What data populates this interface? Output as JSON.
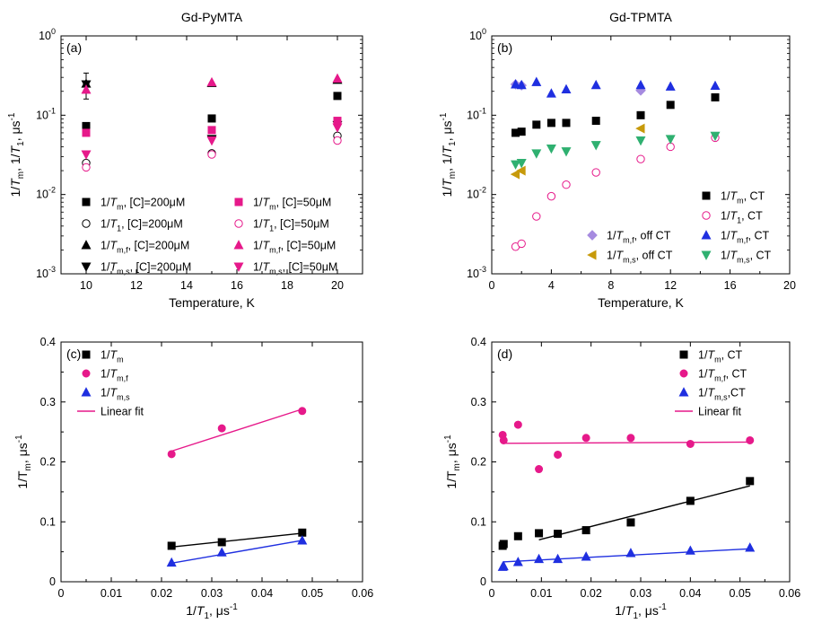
{
  "figure": {
    "axis_scale_note": "panels a,b use log y; panels c,d linear"
  },
  "chart_data": [
    {
      "panel": "a",
      "type": "scatter",
      "tag": "(a)",
      "title": "Gd-PyMTA",
      "xlabel": "Temperature, K",
      "ylabel": "1/Tm, 1/T1, μs⁻¹",
      "xlim": [
        9,
        21
      ],
      "ylim": [
        0.001,
        1
      ],
      "yscale": "log",
      "xticks": [
        10,
        12,
        14,
        16,
        18,
        20
      ],
      "yticks": [
        {
          "v": 0.001,
          "b": "10",
          "e": "-3"
        },
        {
          "v": 0.01,
          "b": "10",
          "e": "-2"
        },
        {
          "v": 0.1,
          "b": "10",
          "e": "-1"
        },
        {
          "v": 1,
          "b": "10",
          "e": "0"
        }
      ],
      "legend_position": "lower",
      "series": [
        {
          "name": "1/Tm, [C]=200μM",
          "marker": "square",
          "color": "#000000",
          "fill": true,
          "x": [
            10,
            15,
            20
          ],
          "y": [
            0.073,
            0.091,
            0.175
          ]
        },
        {
          "name": "1/T1, [C]=200μM",
          "marker": "circle",
          "color": "#000000",
          "fill": false,
          "x": [
            10,
            15,
            20
          ],
          "y": [
            0.025,
            0.033,
            0.055
          ]
        },
        {
          "name": "1/Tm,f, [C]=200μM",
          "marker": "triangle-up",
          "color": "#000000",
          "fill": true,
          "x": [
            10,
            15,
            20
          ],
          "y": [
            0.25,
            0.255,
            0.28
          ],
          "yerr": [
            0.09,
            0,
            0
          ]
        },
        {
          "name": "1/Tm,s, [C]=200μM",
          "marker": "triangle-down",
          "color": "#000000",
          "fill": true,
          "x": [
            10,
            15,
            20
          ],
          "y": [
            0.245,
            0.05,
            0.075
          ]
        },
        {
          "name": "1/Tm, [C]=50μM",
          "marker": "square",
          "color": "#e6198a",
          "fill": true,
          "x": [
            10,
            15,
            20
          ],
          "y": [
            0.06,
            0.065,
            0.085
          ]
        },
        {
          "name": "1/T1, [C]=50μM",
          "marker": "circle",
          "color": "#e6198a",
          "fill": false,
          "x": [
            10,
            15,
            20
          ],
          "y": [
            0.022,
            0.032,
            0.048
          ]
        },
        {
          "name": "1/Tm,f, [C]=50μM",
          "marker": "triangle-up",
          "color": "#e6198a",
          "fill": true,
          "x": [
            10,
            15,
            20
          ],
          "y": [
            0.21,
            0.26,
            0.29
          ]
        },
        {
          "name": "1/Tm,s, [C]=50μM",
          "marker": "triangle-down",
          "color": "#e6198a",
          "fill": true,
          "x": [
            10,
            15,
            20
          ],
          "y": [
            0.032,
            0.048,
            0.07
          ]
        }
      ],
      "legend": [
        [
          {
            "i": 0,
            "base": "1/",
            "it": "T",
            "sub": "m",
            "post": ", [C]=200μM"
          },
          {
            "i": 4,
            "base": "1/",
            "it": "T",
            "sub": "m",
            "post": ", [C]=50μM"
          }
        ],
        [
          {
            "i": 1,
            "base": "1/",
            "it": "T",
            "sub": "1",
            "post": ", [C]=200μM"
          },
          {
            "i": 5,
            "base": "1/",
            "it": "T",
            "sub": "1",
            "post": ", [C]=50μM"
          }
        ],
        [
          {
            "i": 2,
            "base": "1/",
            "it": "T",
            "sub": "m,f",
            "post": ", [C]=200μM"
          },
          {
            "i": 6,
            "base": "1/",
            "it": "T",
            "sub": "m,f",
            "post": ", [C]=50μM"
          }
        ],
        [
          {
            "i": 3,
            "base": "1/",
            "it": "T",
            "sub": "m,s",
            "post": ", [C]=200μM"
          },
          {
            "i": 7,
            "base": "1/",
            "it": "T",
            "sub": "m,s",
            "post": ", [C]=50μM"
          }
        ]
      ]
    },
    {
      "panel": "b",
      "type": "scatter",
      "tag": "(b)",
      "title": "Gd-TPMTA",
      "xlabel": "Temperature, K",
      "ylabel": "1/Tm, 1/T1, μs⁻¹",
      "xlim": [
        0,
        20
      ],
      "ylim": [
        0.001,
        1
      ],
      "yscale": "log",
      "xticks": [
        0,
        4,
        8,
        12,
        16,
        20
      ],
      "yticks": [
        {
          "v": 0.001,
          "b": "10",
          "e": "-3"
        },
        {
          "v": 0.01,
          "b": "10",
          "e": "-2"
        },
        {
          "v": 0.1,
          "b": "10",
          "e": "-1"
        },
        {
          "v": 1,
          "b": "10",
          "e": "0"
        }
      ],
      "legend_position": "lower-right",
      "series": [
        {
          "name": "1/Tm, CT",
          "marker": "square",
          "color": "#000000",
          "fill": true,
          "x": [
            1.6,
            2,
            3,
            4,
            5,
            7,
            10,
            12,
            15
          ],
          "y": [
            0.06,
            0.062,
            0.076,
            0.08,
            0.08,
            0.085,
            0.1,
            0.135,
            0.168
          ]
        },
        {
          "name": "1/T1, CT",
          "marker": "circle",
          "color": "#e6198a",
          "fill": false,
          "x": [
            1.6,
            2,
            3,
            4,
            5,
            7,
            10,
            12,
            15
          ],
          "y": [
            0.0022,
            0.0024,
            0.0053,
            0.0095,
            0.0133,
            0.019,
            0.028,
            0.04,
            0.052
          ]
        },
        {
          "name": "1/Tm,f, off CT",
          "marker": "diamond",
          "color": "#a68be0",
          "fill": true,
          "x": [
            1.6,
            2,
            10
          ],
          "y": [
            0.245,
            0.238,
            0.205
          ]
        },
        {
          "name": "1/Tm,s, off CT",
          "marker": "triangle-left",
          "color": "#c79a0b",
          "fill": true,
          "x": [
            1.6,
            2,
            10
          ],
          "y": [
            0.018,
            0.02,
            0.068
          ]
        },
        {
          "name": "1/Tm,f, CT",
          "marker": "triangle-up",
          "color": "#1f2fe0",
          "fill": true,
          "x": [
            1.6,
            2,
            3,
            4,
            5,
            7,
            10,
            12,
            15
          ],
          "y": [
            0.245,
            0.24,
            0.262,
            0.188,
            0.212,
            0.24,
            0.24,
            0.23,
            0.235
          ]
        },
        {
          "name": "1/Tm,s, CT",
          "marker": "triangle-down",
          "color": "#2fb070",
          "fill": true,
          "x": [
            1.6,
            2,
            3,
            4,
            5,
            7,
            10,
            12,
            15
          ],
          "y": [
            0.024,
            0.025,
            0.033,
            0.038,
            0.035,
            0.042,
            0.048,
            0.05,
            0.055
          ]
        }
      ],
      "legend": [
        [
          null,
          {
            "i": 0,
            "base": "1/",
            "it": "T",
            "sub": "m",
            "post": ", CT"
          }
        ],
        [
          null,
          {
            "i": 1,
            "base": "1/",
            "it": "T",
            "sub": "1",
            "post": ", CT"
          }
        ],
        [
          {
            "i": 2,
            "base": "1/",
            "it": "T",
            "sub": "m,f",
            "post": ", off CT"
          },
          {
            "i": 4,
            "base": "1/",
            "it": "T",
            "sub": "m,f",
            "post": ", CT"
          }
        ],
        [
          {
            "i": 3,
            "base": "1/",
            "it": "T",
            "sub": "m,s",
            "post": ", off CT"
          },
          {
            "i": 5,
            "base": "1/",
            "it": "T",
            "sub": "m,s",
            "post": ", CT"
          }
        ]
      ]
    },
    {
      "panel": "c",
      "type": "scatter",
      "tag": "(c)",
      "title": "",
      "xlabel": "1/T1, μs⁻¹",
      "ylabel": "1/Tm, μs⁻¹",
      "xlim": [
        0,
        0.06
      ],
      "ylim": [
        0,
        0.4
      ],
      "yscale": "linear",
      "xticks": [
        0,
        0.01,
        0.02,
        0.03,
        0.04,
        0.05,
        0.06
      ],
      "yticks": [
        0,
        0.1,
        0.2,
        0.3,
        0.4
      ],
      "legend_position": "top-left",
      "series": [
        {
          "name": "1/Tm",
          "marker": "square",
          "color": "#000000",
          "fill": true,
          "x": [
            0.022,
            0.032,
            0.048
          ],
          "y": [
            0.06,
            0.066,
            0.082
          ],
          "fit": [
            [
              0.022,
              0.058
            ],
            [
              0.048,
              0.081
            ]
          ]
        },
        {
          "name": "1/Tm,f",
          "marker": "circle",
          "color": "#e6198a",
          "fill": true,
          "x": [
            0.022,
            0.032,
            0.048
          ],
          "y": [
            0.213,
            0.256,
            0.285
          ],
          "fit": [
            [
              0.022,
              0.218
            ],
            [
              0.048,
              0.288
            ]
          ]
        },
        {
          "name": "1/Tm,s",
          "marker": "triangle-up",
          "color": "#1f2fe0",
          "fill": true,
          "x": [
            0.022,
            0.032,
            0.048
          ],
          "y": [
            0.032,
            0.049,
            0.069
          ],
          "fit": [
            [
              0.022,
              0.031
            ],
            [
              0.048,
              0.069
            ]
          ]
        }
      ],
      "legend": [
        [
          {
            "i": 0,
            "base": "1/",
            "it": "T",
            "sub": "m",
            "post": ""
          }
        ],
        [
          {
            "i": 1,
            "base": "1/",
            "it": "T",
            "sub": "m,f",
            "post": ""
          }
        ],
        [
          {
            "i": 2,
            "base": "1/",
            "it": "T",
            "sub": "m,s",
            "post": ""
          }
        ],
        [
          {
            "line": "#e6198a",
            "text": "Linear fit"
          }
        ]
      ]
    },
    {
      "panel": "d",
      "type": "scatter",
      "tag": "(d)",
      "title": "",
      "xlabel": "1/T1, μs⁻¹",
      "ylabel": "1/Tm, μs⁻¹",
      "xlim": [
        0,
        0.06
      ],
      "ylim": [
        0,
        0.4
      ],
      "yscale": "linear",
      "xticks": [
        0,
        0.01,
        0.02,
        0.03,
        0.04,
        0.05,
        0.06
      ],
      "yticks": [
        0,
        0.1,
        0.2,
        0.3,
        0.4
      ],
      "legend_position": "top-right",
      "series": [
        {
          "name": "1/Tm, CT",
          "marker": "square",
          "color": "#000000",
          "fill": true,
          "x": [
            0.0022,
            0.0024,
            0.0053,
            0.0095,
            0.0133,
            0.019,
            0.028,
            0.04,
            0.052
          ],
          "y": [
            0.06,
            0.063,
            0.076,
            0.081,
            0.08,
            0.086,
            0.099,
            0.135,
            0.168
          ],
          "fit": [
            [
              0.0095,
              0.07
            ],
            [
              0.052,
              0.16
            ]
          ]
        },
        {
          "name": "1/Tm,f, CT",
          "marker": "circle",
          "color": "#e6198a",
          "fill": true,
          "x": [
            0.0022,
            0.0024,
            0.0053,
            0.0095,
            0.0133,
            0.019,
            0.028,
            0.04,
            0.052
          ],
          "y": [
            0.245,
            0.236,
            0.262,
            0.188,
            0.212,
            0.24,
            0.24,
            0.23,
            0.236
          ],
          "fit": [
            [
              0.0022,
              0.231
            ],
            [
              0.052,
              0.233
            ]
          ]
        },
        {
          "name": "1/Tm,s,CT",
          "marker": "triangle-up",
          "color": "#1f2fe0",
          "fill": true,
          "x": [
            0.0022,
            0.0024,
            0.0053,
            0.0095,
            0.0133,
            0.019,
            0.028,
            0.04,
            0.052
          ],
          "y": [
            0.025,
            0.026,
            0.033,
            0.038,
            0.038,
            0.042,
            0.048,
            0.052,
            0.057
          ],
          "fit": [
            [
              0.0022,
              0.033
            ],
            [
              0.052,
              0.055
            ]
          ]
        }
      ],
      "legend": [
        [
          {
            "i": 0,
            "base": "1/",
            "it": "T",
            "sub": "m",
            "post": ", CT"
          }
        ],
        [
          {
            "i": 1,
            "base": "1/",
            "it": "T",
            "sub": "m,f",
            "post": ", CT"
          }
        ],
        [
          {
            "i": 2,
            "base": "1/",
            "it": "T",
            "sub": "m,s",
            "post": ",CT"
          }
        ],
        [
          {
            "line": "#e6198a",
            "text": "Linear fit"
          }
        ]
      ]
    }
  ]
}
